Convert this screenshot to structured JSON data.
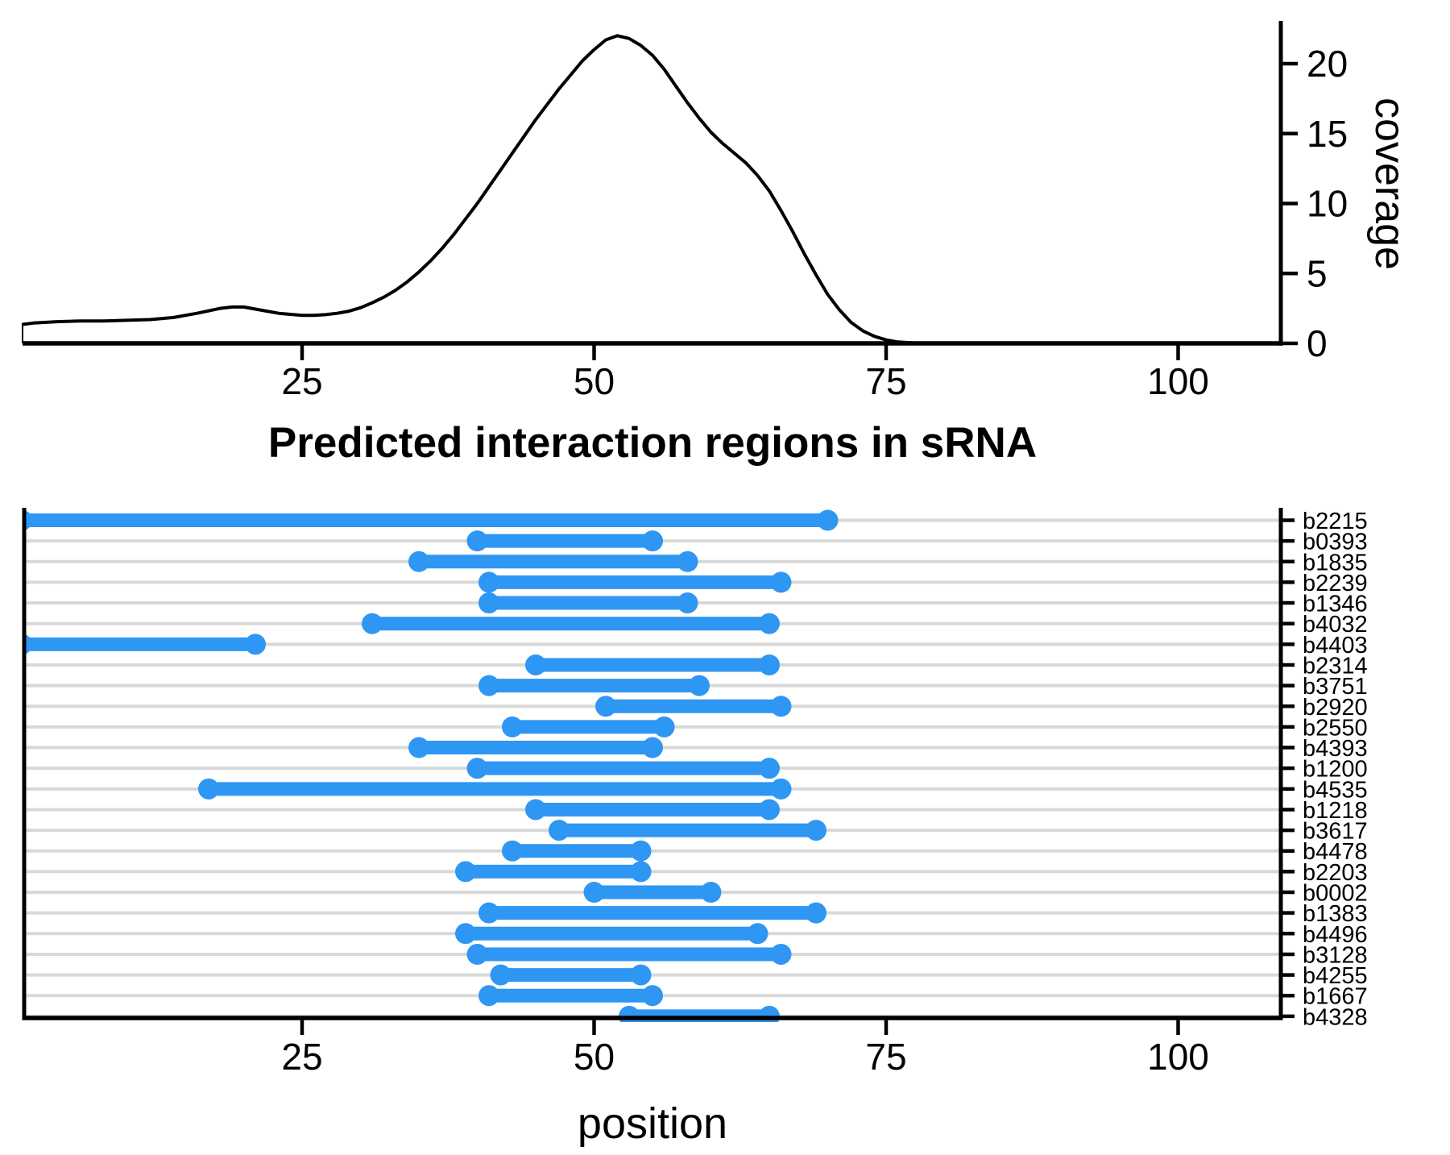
{
  "title": "Predicted interaction regions in sRNA",
  "colors": {
    "segment": "#2E96F3",
    "grid": "#D8D8D8",
    "axis": "#000000",
    "background": "#FFFFFF"
  },
  "chart_data": [
    {
      "type": "area",
      "name": "coverage-density-curve",
      "title": "",
      "xlabel": "",
      "ylabel": "coverage",
      "x_ticks": [
        25,
        50,
        75,
        100
      ],
      "y_ticks": [
        0,
        5,
        10,
        15,
        20
      ],
      "xlim": [
        1,
        109
      ],
      "ylim": [
        0,
        22.5
      ],
      "legend": "none",
      "grid": false,
      "curve_points": [
        [
          1,
          0
        ],
        [
          1,
          1.35
        ],
        [
          2,
          1.45
        ],
        [
          4,
          1.55
        ],
        [
          6,
          1.6
        ],
        [
          8,
          1.6
        ],
        [
          10,
          1.65
        ],
        [
          12,
          1.7
        ],
        [
          14,
          1.85
        ],
        [
          16,
          2.15
        ],
        [
          18,
          2.5
        ],
        [
          19,
          2.6
        ],
        [
          20,
          2.6
        ],
        [
          21,
          2.45
        ],
        [
          23,
          2.15
        ],
        [
          25,
          2.0
        ],
        [
          26,
          2.0
        ],
        [
          27,
          2.05
        ],
        [
          28,
          2.15
        ],
        [
          29,
          2.3
        ],
        [
          30,
          2.55
        ],
        [
          31,
          2.9
        ],
        [
          32,
          3.3
        ],
        [
          33,
          3.8
        ],
        [
          34,
          4.4
        ],
        [
          35,
          5.1
        ],
        [
          36,
          5.9
        ],
        [
          37,
          6.8
        ],
        [
          38,
          7.8
        ],
        [
          39,
          8.9
        ],
        [
          40,
          10.0
        ],
        [
          41,
          11.2
        ],
        [
          42,
          12.4
        ],
        [
          43,
          13.6
        ],
        [
          44,
          14.8
        ],
        [
          45,
          16.0
        ],
        [
          46,
          17.1
        ],
        [
          47,
          18.2
        ],
        [
          48,
          19.2
        ],
        [
          49,
          20.2
        ],
        [
          50,
          21.0
        ],
        [
          51,
          21.7
        ],
        [
          52,
          22.0
        ],
        [
          53,
          21.8
        ],
        [
          54,
          21.3
        ],
        [
          55,
          20.6
        ],
        [
          56,
          19.6
        ],
        [
          57,
          18.4
        ],
        [
          58,
          17.2
        ],
        [
          59,
          16.1
        ],
        [
          60,
          15.1
        ],
        [
          61,
          14.3
        ],
        [
          62,
          13.6
        ],
        [
          63,
          12.9
        ],
        [
          64,
          12.0
        ],
        [
          65,
          10.9
        ],
        [
          66,
          9.5
        ],
        [
          67,
          8.0
        ],
        [
          68,
          6.4
        ],
        [
          69,
          4.9
        ],
        [
          70,
          3.5
        ],
        [
          71,
          2.4
        ],
        [
          72,
          1.5
        ],
        [
          73,
          0.9
        ],
        [
          74,
          0.5
        ],
        [
          75,
          0.25
        ],
        [
          76,
          0.1
        ],
        [
          77,
          0.05
        ],
        [
          78,
          0
        ],
        [
          108.8,
          0
        ]
      ]
    },
    {
      "type": "segment",
      "name": "predicted-interaction-regions",
      "xlabel": "position",
      "x_ticks": [
        25,
        50,
        75,
        100
      ],
      "xlim": [
        1,
        109
      ],
      "rows": [
        {
          "label": "b2215",
          "start": 1,
          "end": 70,
          "start_clipped": true
        },
        {
          "label": "b0393",
          "start": 40,
          "end": 55
        },
        {
          "label": "b1835",
          "start": 35,
          "end": 58
        },
        {
          "label": "b2239",
          "start": 41,
          "end": 66
        },
        {
          "label": "b1346",
          "start": 41,
          "end": 58
        },
        {
          "label": "b4032",
          "start": 31,
          "end": 65
        },
        {
          "label": "b4403",
          "start": 1,
          "end": 21,
          "start_clipped": true
        },
        {
          "label": "b2314",
          "start": 45,
          "end": 65
        },
        {
          "label": "b3751",
          "start": 41,
          "end": 59
        },
        {
          "label": "b2920",
          "start": 51,
          "end": 66
        },
        {
          "label": "b2550",
          "start": 43,
          "end": 56
        },
        {
          "label": "b4393",
          "start": 35,
          "end": 55
        },
        {
          "label": "b1200",
          "start": 40,
          "end": 65
        },
        {
          "label": "b4535",
          "start": 17,
          "end": 66
        },
        {
          "label": "b1218",
          "start": 45,
          "end": 65
        },
        {
          "label": "b3617",
          "start": 47,
          "end": 69
        },
        {
          "label": "b4478",
          "start": 43,
          "end": 54
        },
        {
          "label": "b2203",
          "start": 39,
          "end": 54
        },
        {
          "label": "b0002",
          "start": 50,
          "end": 60
        },
        {
          "label": "b1383",
          "start": 41,
          "end": 69
        },
        {
          "label": "b4496",
          "start": 39,
          "end": 64
        },
        {
          "label": "b3128",
          "start": 40,
          "end": 66
        },
        {
          "label": "b4255",
          "start": 42,
          "end": 54
        },
        {
          "label": "b1667",
          "start": 41,
          "end": 55
        },
        {
          "label": "b4328",
          "start": 53,
          "end": 65
        }
      ]
    }
  ]
}
